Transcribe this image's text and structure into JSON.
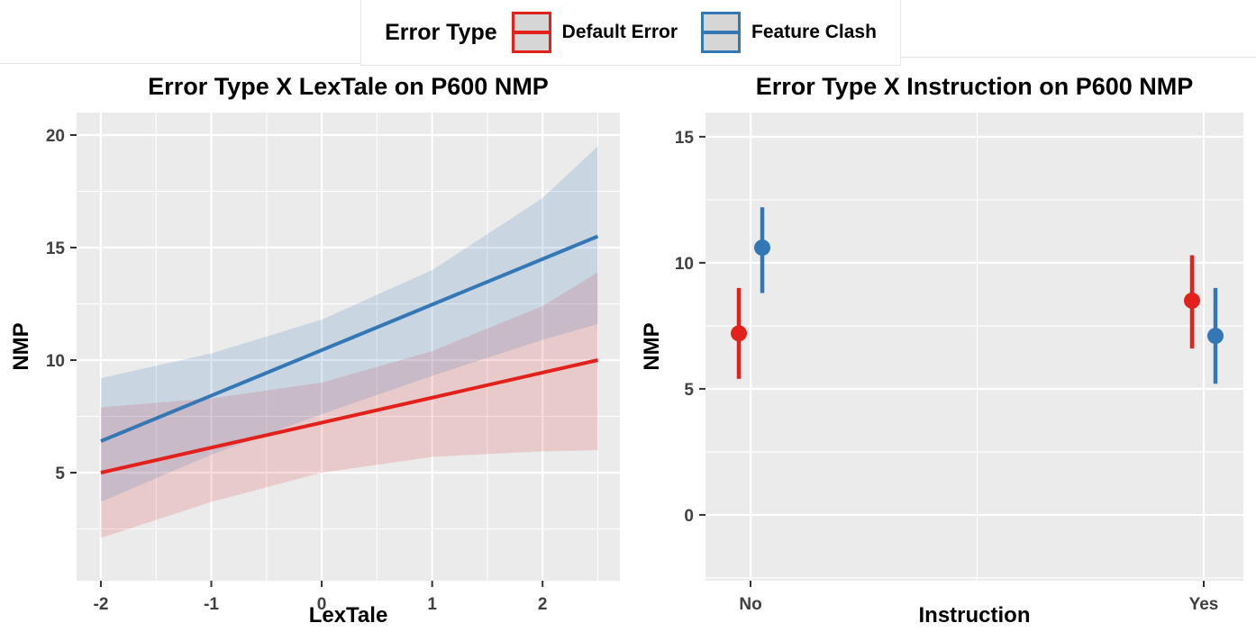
{
  "legend": {
    "title": "Error Type",
    "entries": [
      {
        "label": "Default Error",
        "color": "#E2201C"
      },
      {
        "label": "Feature Clash",
        "color": "#3377B5"
      }
    ]
  },
  "colors": {
    "panel_bg": "#EBEBEB",
    "grid": "#FFFFFF",
    "tick_mark": "#333333",
    "tick_label": "#404040",
    "red": "#E2201C",
    "blue": "#3377B5",
    "red_ribbon": "rgba(226,32,28,0.16)",
    "blue_ribbon": "rgba(51,119,181,0.18)"
  },
  "chart_data": [
    {
      "type": "line",
      "title": "Error Type X LexTale on P600 NMP",
      "xlabel": "LexTale",
      "ylabel": "NMP",
      "x_ticks": [
        -2,
        -1,
        0,
        1,
        2
      ],
      "x_minor": [
        -1.5,
        -0.5,
        0.5,
        1.5,
        2.5
      ],
      "y_ticks": [
        5,
        10,
        15,
        20
      ],
      "y_minor": [
        2.5,
        7.5,
        12.5,
        17.5
      ],
      "xlim": [
        -2.22,
        2.7
      ],
      "ylim": [
        0.2,
        21.0
      ],
      "grid": true,
      "legend_position": "top",
      "series": [
        {
          "name": "Default Error",
          "color": "#E2201C",
          "x": [
            -2,
            2.5
          ],
          "y": [
            5.0,
            10.0
          ],
          "ribbon": {
            "x": [
              -2,
              -1,
              0,
              1,
              2,
              2.5
            ],
            "upper": [
              7.9,
              8.3,
              9.0,
              10.4,
              12.4,
              13.9
            ],
            "lower": [
              2.1,
              3.7,
              5.0,
              5.7,
              5.95,
              6.0
            ]
          }
        },
        {
          "name": "Feature Clash",
          "color": "#3377B5",
          "x": [
            -2,
            2.5
          ],
          "y": [
            6.4,
            15.5
          ],
          "ribbon": {
            "x": [
              -2,
              -1,
              0,
              1,
              2,
              2.5
            ],
            "upper": [
              9.2,
              10.3,
              11.8,
              14.0,
              17.2,
              19.5
            ],
            "lower": [
              3.7,
              5.8,
              7.6,
              9.3,
              10.9,
              11.6
            ]
          }
        }
      ]
    },
    {
      "type": "pointrange",
      "title": "Error Type X Instruction on P600 NMP",
      "xlabel": "Instruction",
      "ylabel": "NMP",
      "categories": [
        "No",
        "Yes"
      ],
      "y_ticks": [
        0,
        5,
        10,
        15
      ],
      "y_minor": [
        -2.5,
        2.5,
        7.5,
        12.5
      ],
      "ylim": [
        -2.61,
        15.96
      ],
      "grid": true,
      "series": [
        {
          "name": "Default Error",
          "color": "#E2201C",
          "values": [
            {
              "x": "No",
              "y": 7.2,
              "ymin": 5.4,
              "ymax": 9.0
            },
            {
              "x": "Yes",
              "y": 8.5,
              "ymin": 6.6,
              "ymax": 10.3
            }
          ]
        },
        {
          "name": "Feature Clash",
          "color": "#3377B5",
          "values": [
            {
              "x": "No",
              "y": 10.6,
              "ymin": 8.8,
              "ymax": 12.2
            },
            {
              "x": "Yes",
              "y": 7.1,
              "ymin": 5.2,
              "ymax": 9.0
            }
          ]
        }
      ]
    }
  ]
}
